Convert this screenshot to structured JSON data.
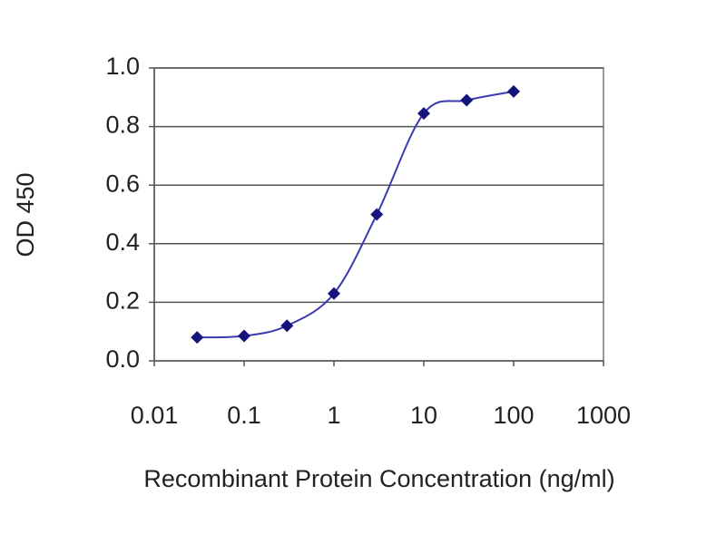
{
  "chart_data": {
    "type": "line",
    "xlabel": "Recombinant Protein Concentration (ng/ml)",
    "ylabel": "OD 450",
    "x": [
      0.03,
      0.1,
      0.3,
      1,
      3,
      10,
      30,
      100
    ],
    "series": [
      {
        "color": "#14147a",
        "values": [
          0.08,
          0.085,
          0.12,
          0.23,
          0.5,
          0.845,
          0.89,
          0.92
        ]
      }
    ],
    "xlog": true,
    "xlim": [
      0.01,
      1000
    ],
    "xticks": [
      0.01,
      0.1,
      1,
      10,
      100,
      1000
    ],
    "ylim": [
      0,
      1
    ],
    "yticks": [
      {
        "value": 0,
        "label": "0.0"
      },
      0.2,
      0.4,
      0.6,
      0.8,
      {
        "value": 1,
        "label": "1.0"
      }
    ],
    "grid": true
  }
}
